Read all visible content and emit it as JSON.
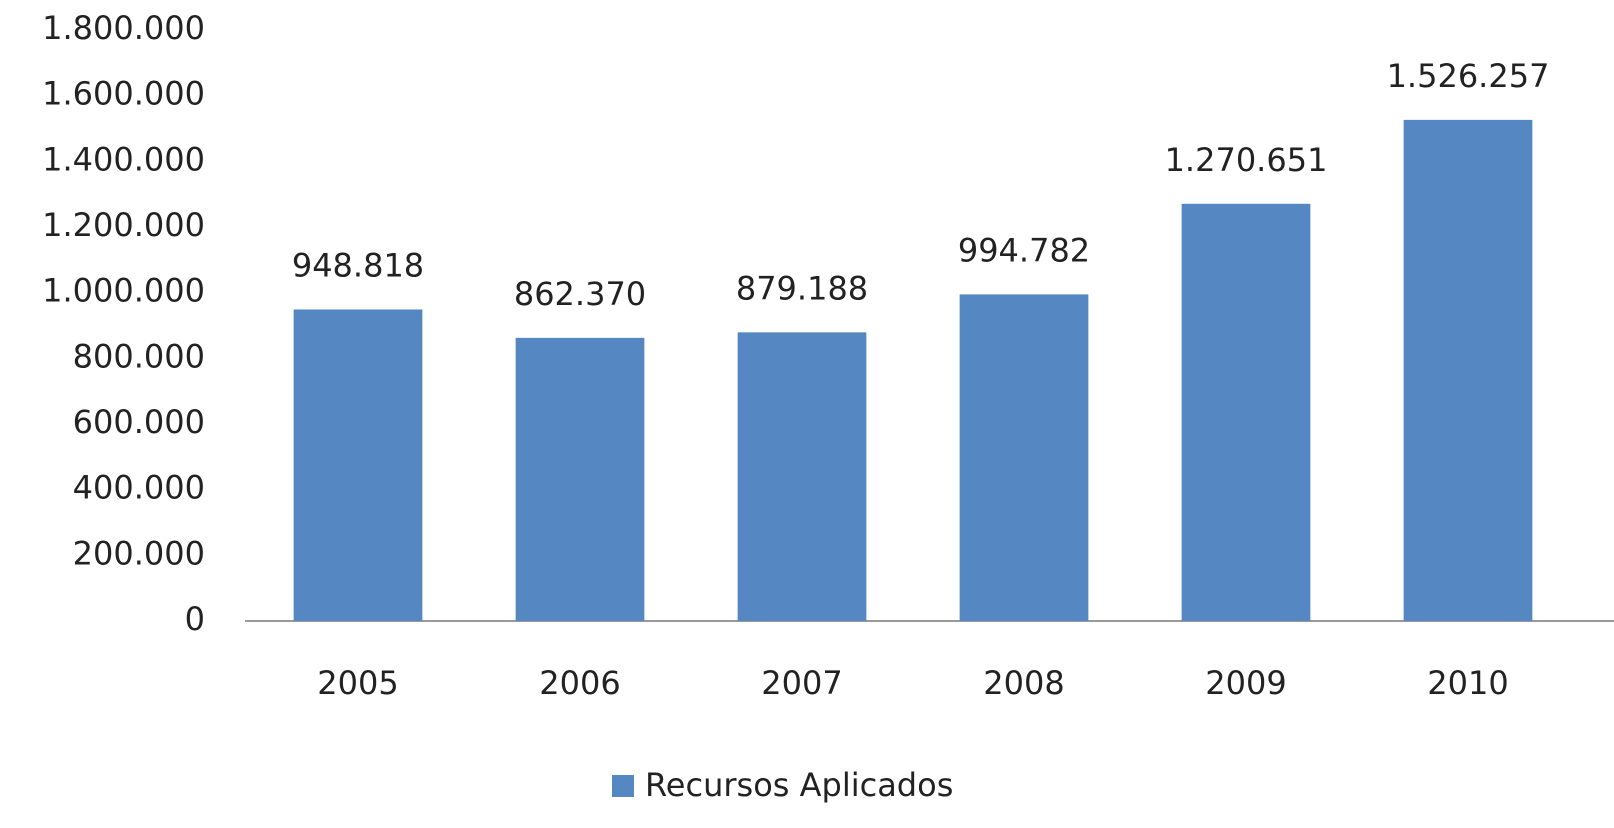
{
  "chart_data": {
    "type": "bar",
    "categories": [
      "2005",
      "2006",
      "2007",
      "2008",
      "2009",
      "2010"
    ],
    "series": [
      {
        "name": "Recursos Aplicados",
        "color": "#5588c3",
        "values": [
          948818,
          862370,
          879188,
          994782,
          1270651,
          1526257
        ],
        "value_labels": [
          "948.818",
          "862.370",
          "879.188",
          "994.782",
          "1.270.651",
          "1.526.257"
        ]
      }
    ],
    "ylim": [
      0,
      1800000
    ],
    "yticks": [
      0,
      {
        "value": 200000,
        "label": "200.000"
      },
      {
        "value": 400000,
        "label": "400.000"
      },
      {
        "value": 600000,
        "label": "600.000"
      },
      {
        "value": 800000,
        "label": "800.000"
      },
      {
        "value": 1000000,
        "label": "1.000.000"
      },
      {
        "value": 1200000,
        "label": "1.200.000"
      },
      {
        "value": 1400000,
        "label": "1.400.000"
      },
      {
        "value": 1600000,
        "label": "1.600.000"
      },
      {
        "value": 1800000,
        "label": "1.800.000"
      }
    ],
    "grid": false,
    "legend": "bottom"
  }
}
